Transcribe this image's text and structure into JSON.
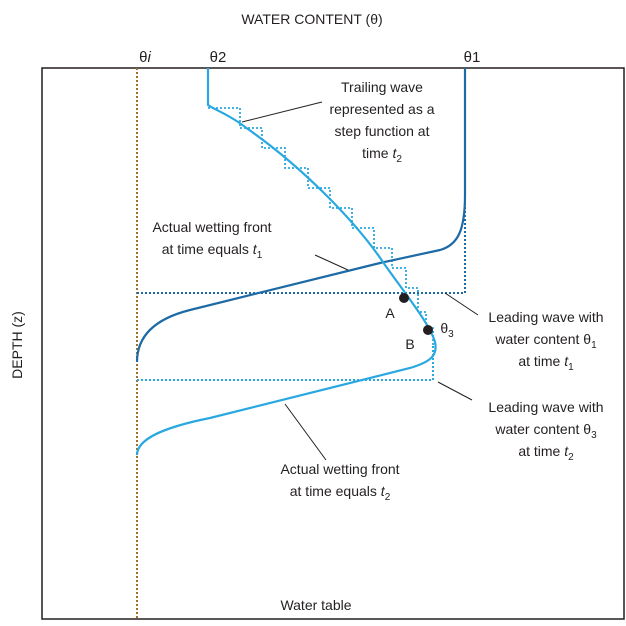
{
  "title": "WATER CONTENT (θ)",
  "y_axis_label": "DEPTH (z)",
  "top_labels": [
    {
      "text": "θ",
      "var": "i"
    },
    {
      "text": "θ2"
    },
    {
      "text": "θ1"
    }
  ],
  "annotations": [
    {
      "lines": [
        {
          "text": "Trailing wave"
        },
        {
          "text": "represented as a"
        },
        {
          "text": "step function at"
        },
        {
          "text": "time ",
          "var": "t",
          "sub": "2"
        }
      ]
    },
    {
      "lines": [
        {
          "text": "Actual wetting front"
        },
        {
          "text": "at time equals ",
          "var": "t",
          "sub": "1"
        }
      ]
    },
    {
      "lines": [
        {
          "text": "Leading wave with"
        },
        {
          "text": "water content θ",
          "sub": "1"
        },
        {
          "text": "at time  ",
          "var": "t",
          "sub": "1"
        }
      ]
    },
    {
      "lines": [
        {
          "text": "Leading wave with"
        },
        {
          "text": "water content θ",
          "sub": "3"
        },
        {
          "text": "at time ",
          "var": "t",
          "sub": "2"
        }
      ]
    },
    {
      "lines": [
        {
          "text": "Actual wetting front"
        },
        {
          "text": "at time equals ",
          "var": "t",
          "sub": "2"
        }
      ]
    }
  ],
  "point_labels": [
    {
      "text": "A"
    },
    {
      "text": "B"
    },
    {
      "text": "θ",
      "sub": "3"
    }
  ],
  "bottom_label": "Water table"
}
